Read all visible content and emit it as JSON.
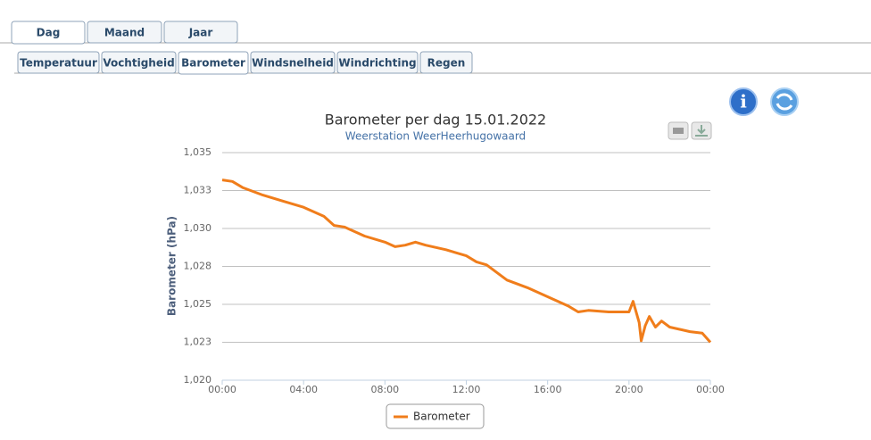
{
  "tabs": {
    "items": [
      "Dag",
      "Maand",
      "Jaar"
    ],
    "active": 0
  },
  "subtabs": {
    "items": [
      "Temperatuur",
      "Vochtigheid",
      "Barometer",
      "Windsnelheid",
      "Windrichting",
      "Regen"
    ],
    "active": 2
  },
  "chart_data": {
    "type": "line",
    "title": "Barometer per dag 15.01.2022",
    "subtitle": "Weerstation WeerHeerhugowaard",
    "y_label": "Barometer (hPa)",
    "xlim": [
      0,
      24
    ],
    "xticks": [
      {
        "value": 0,
        "label": "00:00"
      },
      {
        "value": 4,
        "label": "04:00"
      },
      {
        "value": 8,
        "label": "08:00"
      },
      {
        "value": 12,
        "label": "12:00"
      },
      {
        "value": 16,
        "label": "16:00"
      },
      {
        "value": 20,
        "label": "20:00"
      },
      {
        "value": 24,
        "label": "00:00"
      }
    ],
    "ylim": [
      1020,
      1035
    ],
    "yticks": [
      {
        "value": 1020,
        "label": "1,020"
      },
      {
        "value": 1022.5,
        "label": "1,023"
      },
      {
        "value": 1025,
        "label": "1,025"
      },
      {
        "value": 1027.5,
        "label": "1,028"
      },
      {
        "value": 1030,
        "label": "1,030"
      },
      {
        "value": 1032.5,
        "label": "1,033"
      },
      {
        "value": 1035,
        "label": "1,035"
      }
    ],
    "grid": true,
    "x": [
      0,
      0.5,
      1,
      2,
      3,
      4,
      5,
      5.5,
      6,
      7,
      8,
      8.5,
      9,
      9.5,
      10,
      11,
      12,
      12.5,
      13,
      14,
      15,
      16,
      17,
      17.5,
      18,
      19,
      20,
      20.2,
      20.5,
      20.6,
      20.8,
      21,
      21.3,
      21.6,
      22,
      23,
      23.6,
      24
    ],
    "series": [
      {
        "name": "Barometer",
        "color": "#f07d1b",
        "values": [
          1033.2,
          1033.1,
          1032.7,
          1032.2,
          1031.8,
          1031.4,
          1030.8,
          1030.2,
          1030.1,
          1029.5,
          1029.1,
          1028.8,
          1028.9,
          1029.1,
          1028.9,
          1028.6,
          1028.2,
          1027.8,
          1027.6,
          1026.6,
          1026.1,
          1025.5,
          1024.9,
          1024.5,
          1024.6,
          1024.5,
          1024.5,
          1025.2,
          1023.8,
          1022.6,
          1023.6,
          1024.2,
          1023.5,
          1023.9,
          1023.5,
          1023.2,
          1023.1,
          1022.5
        ]
      }
    ]
  }
}
